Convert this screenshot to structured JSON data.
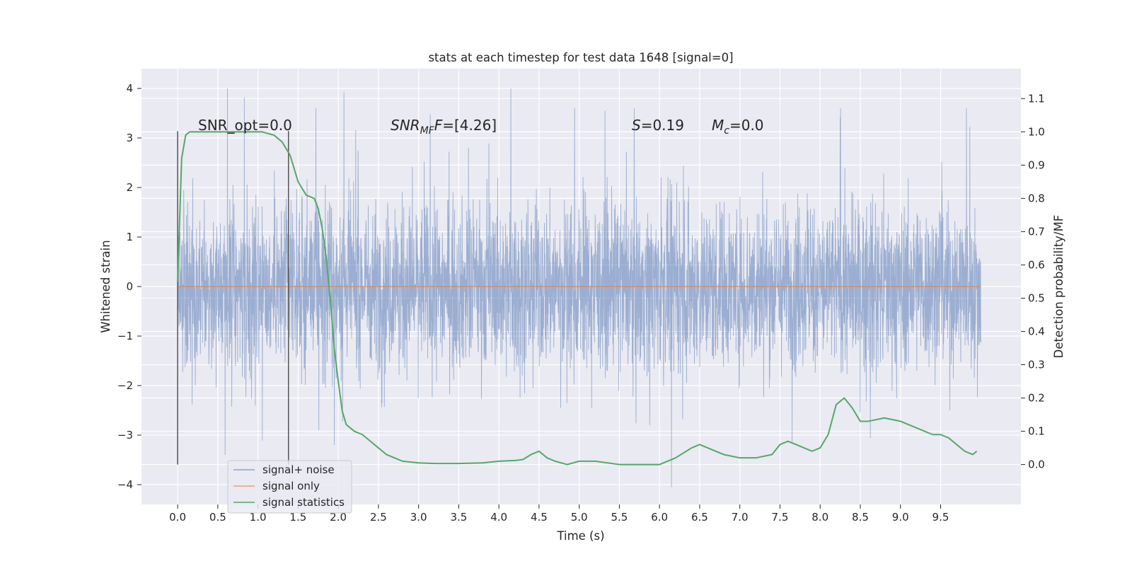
{
  "chart_data": {
    "type": "line",
    "title": "stats at each timestep for test data 1648 [signal=0]",
    "xlabel": "Time (s)",
    "ylabel": "Whitened strain",
    "y2label": "Detection probability/MF",
    "xlim": [
      -0.45,
      10.5
    ],
    "ylim": [
      -4.4,
      4.4
    ],
    "y2lim": [
      -0.12,
      1.19
    ],
    "x_ticks": [
      0.0,
      0.5,
      1.0,
      1.5,
      2.0,
      2.5,
      3.0,
      3.5,
      4.0,
      4.5,
      5.0,
      5.5,
      6.0,
      6.5,
      7.0,
      7.5,
      8.0,
      8.5,
      9.0,
      9.5
    ],
    "x_tick_labels": [
      "0.0",
      "0.5",
      "1.0",
      "1.5",
      "2.0",
      "2.5",
      "3.0",
      "3.5",
      "4.0",
      "4.5",
      "5.0",
      "5.5",
      "6.0",
      "6.5",
      "7.0",
      "7.5",
      "8.0",
      "8.5",
      "9.0",
      "9.5"
    ],
    "y_ticks": [
      -4,
      -3,
      -2,
      -1,
      0,
      1,
      2,
      3,
      4
    ],
    "y_tick_labels": [
      "−4",
      "−3",
      "−2",
      "−1",
      "0",
      "1",
      "2",
      "3",
      "4"
    ],
    "y2_ticks": [
      0.0,
      0.1,
      0.2,
      0.3,
      0.4,
      0.5,
      0.6,
      0.7,
      0.8,
      0.9,
      1.0,
      1.1
    ],
    "y2_tick_labels": [
      "0.0",
      "0.1",
      "0.2",
      "0.3",
      "0.4",
      "0.5",
      "0.6",
      "0.7",
      "0.8",
      "0.9",
      "1.0",
      "1.1"
    ],
    "grid": true,
    "legend_position": "lower-left",
    "legend": [
      "signal+ noise",
      "signal only",
      "signal statistics"
    ],
    "colors": {
      "signal_noise": "#4c72b0",
      "signal_only": "#dd8452",
      "statistics": "#55a868",
      "background": "#eaeaf2",
      "grid": "#ffffff",
      "vline": "#555555"
    },
    "series": [
      {
        "name": "signal+ noise",
        "axis": "left",
        "x_range": [
          0.0,
          10.0
        ],
        "typical_amplitude": 1.25,
        "max_value": 4.0,
        "min_value": -4.05,
        "peaks": [
          [
            0.62,
            4.0
          ],
          [
            0.83,
            3.82
          ],
          [
            2.07,
            3.92
          ],
          [
            4.15,
            4.0
          ],
          [
            6.15,
            -4.05
          ],
          [
            0.59,
            -3.4
          ],
          [
            1.95,
            -3.2
          ],
          [
            8.25,
            3.42
          ]
        ]
      },
      {
        "name": "signal only",
        "axis": "left",
        "x": [
          0.0,
          10.0
        ],
        "y": [
          0.0,
          0.0
        ]
      },
      {
        "name": "signal statistics",
        "axis": "right",
        "x": [
          0.0,
          0.05,
          0.1,
          0.15,
          0.2,
          0.3,
          0.5,
          0.7,
          0.9,
          1.05,
          1.2,
          1.3,
          1.4,
          1.45,
          1.5,
          1.6,
          1.7,
          1.75,
          1.8,
          1.85,
          1.9,
          1.95,
          2.0,
          2.05,
          2.1,
          2.15,
          2.2,
          2.3,
          2.4,
          2.5,
          2.6,
          2.7,
          2.8,
          3.0,
          3.2,
          3.5,
          3.8,
          4.0,
          4.2,
          4.3,
          4.4,
          4.5,
          4.6,
          4.7,
          4.85,
          5.0,
          5.2,
          5.5,
          5.8,
          6.0,
          6.2,
          6.4,
          6.5,
          6.6,
          6.8,
          7.0,
          7.2,
          7.4,
          7.5,
          7.6,
          7.7,
          7.8,
          7.9,
          8.0,
          8.1,
          8.2,
          8.3,
          8.4,
          8.5,
          8.6,
          8.8,
          9.0,
          9.2,
          9.4,
          9.5,
          9.6,
          9.7,
          9.8,
          9.9,
          9.95
        ],
        "y": [
          0.55,
          0.92,
          0.99,
          1.0,
          1.0,
          1.0,
          1.0,
          1.0,
          1.0,
          1.0,
          0.99,
          0.97,
          0.93,
          0.89,
          0.85,
          0.81,
          0.8,
          0.77,
          0.71,
          0.62,
          0.5,
          0.35,
          0.25,
          0.16,
          0.12,
          0.11,
          0.1,
          0.09,
          0.07,
          0.05,
          0.03,
          0.02,
          0.01,
          0.005,
          0.003,
          0.003,
          0.005,
          0.01,
          0.012,
          0.015,
          0.03,
          0.04,
          0.02,
          0.01,
          0.0,
          0.01,
          0.01,
          0.0,
          0.0,
          0.0,
          0.02,
          0.05,
          0.06,
          0.05,
          0.03,
          0.02,
          0.02,
          0.03,
          0.06,
          0.07,
          0.06,
          0.05,
          0.04,
          0.05,
          0.09,
          0.18,
          0.2,
          0.17,
          0.13,
          0.13,
          0.14,
          0.13,
          0.11,
          0.09,
          0.09,
          0.08,
          0.06,
          0.04,
          0.03,
          0.04
        ]
      }
    ],
    "vlines": [
      0.0,
      1.38
    ],
    "vline_range_y2": [
      0.0,
      1.0
    ],
    "annotations": {
      "snr_opt": "SNR_opt=0.0",
      "snr_mf_prefix": "SNR",
      "snr_mf_sub": "MF",
      "snr_mf_suffix": "=[4.26]",
      "s_prefix": "S",
      "s_value": "=0.19",
      "mc_prefix": "M",
      "mc_sub": "c",
      "mc_value": "=0.0"
    }
  }
}
